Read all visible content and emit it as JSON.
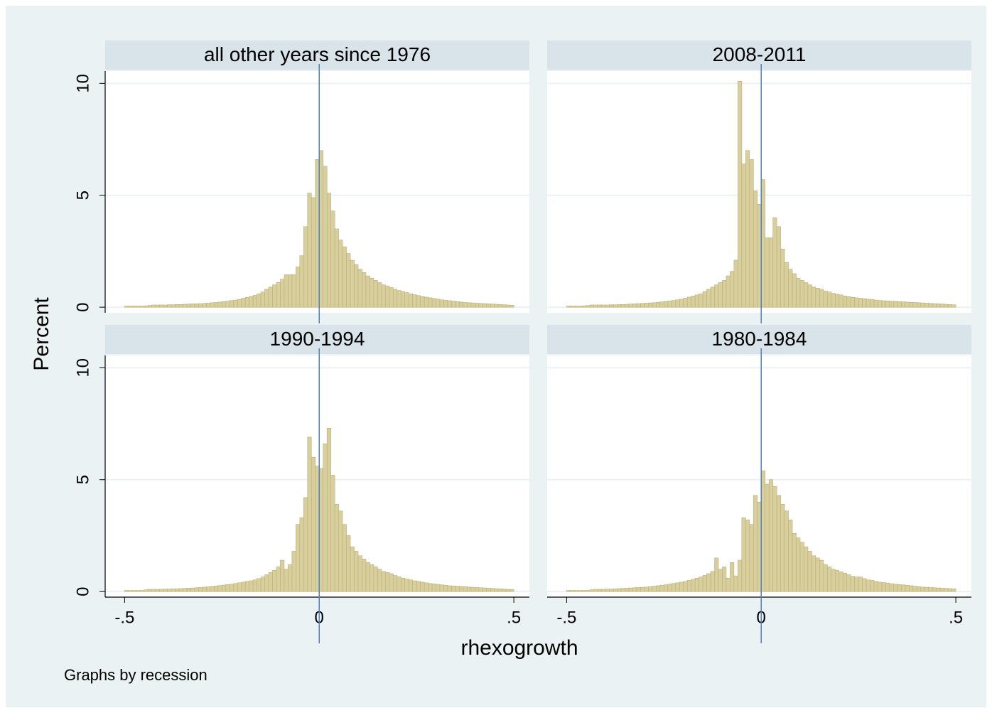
{
  "chart_data": [
    {
      "type": "histogram",
      "title": "all other years since 1976",
      "color": "#d8cf9c",
      "edge_color": "#b9ae7c",
      "xline": 0,
      "xline_color": "#4f81bd",
      "xlim": [
        -0.55,
        0.54
      ],
      "ylim": [
        -0.25,
        10.55
      ],
      "yticks": [
        0,
        5,
        10
      ],
      "grid": true,
      "bins": [
        -0.5,
        -0.49,
        -0.48,
        -0.47,
        -0.46,
        -0.45,
        -0.44,
        -0.43,
        -0.42,
        -0.41,
        -0.4,
        -0.39,
        -0.38,
        -0.37,
        -0.36,
        -0.35,
        -0.34,
        -0.33,
        -0.32,
        -0.31,
        -0.3,
        -0.29,
        -0.28,
        -0.27,
        -0.26,
        -0.25,
        -0.24,
        -0.23,
        -0.22,
        -0.21,
        -0.2,
        -0.19,
        -0.18,
        -0.17,
        -0.16,
        -0.15,
        -0.14,
        -0.13,
        -0.12,
        -0.11,
        -0.1,
        -0.09,
        -0.08,
        -0.07,
        -0.06,
        -0.05,
        -0.04,
        -0.03,
        -0.02,
        -0.01,
        0,
        0.01,
        0.02,
        0.03,
        0.04,
        0.05,
        0.06,
        0.07,
        0.08,
        0.09,
        0.1,
        0.11,
        0.12,
        0.13,
        0.14,
        0.15,
        0.16,
        0.17,
        0.18,
        0.19,
        0.2,
        0.21,
        0.22,
        0.23,
        0.24,
        0.25,
        0.26,
        0.27,
        0.28,
        0.29,
        0.3,
        0.31,
        0.32,
        0.33,
        0.34,
        0.35,
        0.36,
        0.37,
        0.38,
        0.39,
        0.4,
        0.41,
        0.42,
        0.43,
        0.44,
        0.45,
        0.46,
        0.47,
        0.48,
        0.49,
        0.5
      ],
      "values": [
        0.05,
        0.05,
        0.05,
        0.05,
        0.05,
        0.06,
        0.08,
        0.1,
        0.1,
        0.1,
        0.1,
        0.11,
        0.11,
        0.12,
        0.12,
        0.13,
        0.14,
        0.15,
        0.15,
        0.16,
        0.17,
        0.18,
        0.2,
        0.21,
        0.23,
        0.25,
        0.27,
        0.3,
        0.32,
        0.35,
        0.4,
        0.44,
        0.48,
        0.53,
        0.6,
        0.68,
        0.8,
        0.9,
        1.0,
        1.1,
        1.25,
        1.45,
        1.45,
        1.45,
        1.8,
        2.3,
        3.6,
        5.1,
        4.9,
        6.6,
        7.0,
        6.3,
        5.1,
        4.3,
        3.5,
        3.0,
        2.7,
        2.4,
        2.1,
        1.9,
        1.7,
        1.55,
        1.4,
        1.3,
        1.2,
        1.1,
        1.0,
        0.95,
        0.88,
        0.8,
        0.75,
        0.7,
        0.65,
        0.6,
        0.56,
        0.52,
        0.48,
        0.45,
        0.42,
        0.39,
        0.36,
        0.33,
        0.31,
        0.29,
        0.27,
        0.25,
        0.23,
        0.21,
        0.2,
        0.19,
        0.18,
        0.17,
        0.16,
        0.15,
        0.14,
        0.13,
        0.12,
        0.11,
        0.1,
        0.09
      ]
    },
    {
      "type": "histogram",
      "title": "2008-2011",
      "color": "#d8cf9c",
      "edge_color": "#b9ae7c",
      "xline": 0,
      "xline_color": "#4f81bd",
      "xlim": [
        -0.55,
        0.54
      ],
      "ylim": [
        -0.25,
        10.55
      ],
      "yticks": [
        0,
        5,
        10
      ],
      "grid": true,
      "bins": [
        -0.5,
        -0.49,
        -0.48,
        -0.47,
        -0.46,
        -0.45,
        -0.44,
        -0.43,
        -0.42,
        -0.41,
        -0.4,
        -0.39,
        -0.38,
        -0.37,
        -0.36,
        -0.35,
        -0.34,
        -0.33,
        -0.32,
        -0.31,
        -0.3,
        -0.29,
        -0.28,
        -0.27,
        -0.26,
        -0.25,
        -0.24,
        -0.23,
        -0.22,
        -0.21,
        -0.2,
        -0.19,
        -0.18,
        -0.17,
        -0.16,
        -0.15,
        -0.14,
        -0.13,
        -0.12,
        -0.11,
        -0.1,
        -0.09,
        -0.08,
        -0.07,
        -0.06,
        -0.05,
        -0.04,
        -0.03,
        -0.02,
        -0.01,
        0,
        0.01,
        0.02,
        0.03,
        0.04,
        0.05,
        0.06,
        0.07,
        0.08,
        0.09,
        0.1,
        0.11,
        0.12,
        0.13,
        0.14,
        0.15,
        0.16,
        0.17,
        0.18,
        0.19,
        0.2,
        0.21,
        0.22,
        0.23,
        0.24,
        0.25,
        0.26,
        0.27,
        0.28,
        0.29,
        0.3,
        0.31,
        0.32,
        0.33,
        0.34,
        0.35,
        0.36,
        0.37,
        0.38,
        0.39,
        0.4,
        0.41,
        0.42,
        0.43,
        0.44,
        0.45,
        0.46,
        0.47,
        0.48,
        0.49,
        0.5
      ],
      "values": [
        0.05,
        0.05,
        0.05,
        0.05,
        0.06,
        0.08,
        0.1,
        0.1,
        0.1,
        0.1,
        0.1,
        0.11,
        0.11,
        0.12,
        0.12,
        0.13,
        0.14,
        0.15,
        0.16,
        0.17,
        0.18,
        0.19,
        0.2,
        0.22,
        0.24,
        0.26,
        0.28,
        0.3,
        0.33,
        0.36,
        0.4,
        0.45,
        0.5,
        0.55,
        0.6,
        0.7,
        0.8,
        0.9,
        1.0,
        1.1,
        1.2,
        1.4,
        1.6,
        2.1,
        10.1,
        6.4,
        7.0,
        6.6,
        5.2,
        4.6,
        5.7,
        3.1,
        3.1,
        4.0,
        3.6,
        2.6,
        2.0,
        1.7,
        1.5,
        1.3,
        1.2,
        1.1,
        1.0,
        0.9,
        0.85,
        0.8,
        0.72,
        0.68,
        0.62,
        0.58,
        0.55,
        0.5,
        0.47,
        0.44,
        0.42,
        0.4,
        0.38,
        0.36,
        0.34,
        0.32,
        0.3,
        0.29,
        0.28,
        0.27,
        0.26,
        0.25,
        0.24,
        0.23,
        0.22,
        0.21,
        0.2,
        0.19,
        0.18,
        0.17,
        0.16,
        0.15,
        0.14,
        0.13,
        0.12,
        0.11
      ]
    },
    {
      "type": "histogram",
      "title": "1990-1994",
      "color": "#d8cf9c",
      "edge_color": "#b9ae7c",
      "xline": 0,
      "xline_color": "#4f81bd",
      "xlim": [
        -0.55,
        0.54
      ],
      "ylim": [
        -0.25,
        10.55
      ],
      "yticks": [
        0,
        5,
        10
      ],
      "grid": true,
      "xticks": [
        {
          "value": -0.5,
          "label": "-.5"
        },
        0,
        {
          "value": 0.5,
          "label": ".5"
        }
      ],
      "bins": [
        -0.5,
        -0.49,
        -0.48,
        -0.47,
        -0.46,
        -0.45,
        -0.44,
        -0.43,
        -0.42,
        -0.41,
        -0.4,
        -0.39,
        -0.38,
        -0.37,
        -0.36,
        -0.35,
        -0.34,
        -0.33,
        -0.32,
        -0.31,
        -0.3,
        -0.29,
        -0.28,
        -0.27,
        -0.26,
        -0.25,
        -0.24,
        -0.23,
        -0.22,
        -0.21,
        -0.2,
        -0.19,
        -0.18,
        -0.17,
        -0.16,
        -0.15,
        -0.14,
        -0.13,
        -0.12,
        -0.11,
        -0.1,
        -0.09,
        -0.08,
        -0.07,
        -0.06,
        -0.05,
        -0.04,
        -0.03,
        -0.02,
        -0.01,
        0,
        0.01,
        0.02,
        0.03,
        0.04,
        0.05,
        0.06,
        0.07,
        0.08,
        0.09,
        0.1,
        0.11,
        0.12,
        0.13,
        0.14,
        0.15,
        0.16,
        0.17,
        0.18,
        0.19,
        0.2,
        0.21,
        0.22,
        0.23,
        0.24,
        0.25,
        0.26,
        0.27,
        0.28,
        0.29,
        0.3,
        0.31,
        0.32,
        0.33,
        0.34,
        0.35,
        0.36,
        0.37,
        0.38,
        0.39,
        0.4,
        0.41,
        0.42,
        0.43,
        0.44,
        0.45,
        0.46,
        0.47,
        0.48,
        0.49,
        0.5
      ],
      "values": [
        0.05,
        0.05,
        0.05,
        0.05,
        0.05,
        0.08,
        0.1,
        0.1,
        0.1,
        0.1,
        0.11,
        0.11,
        0.12,
        0.12,
        0.13,
        0.14,
        0.15,
        0.16,
        0.17,
        0.18,
        0.2,
        0.21,
        0.23,
        0.25,
        0.27,
        0.29,
        0.31,
        0.33,
        0.36,
        0.39,
        0.42,
        0.45,
        0.48,
        0.52,
        0.58,
        0.65,
        0.75,
        0.85,
        0.95,
        1.1,
        1.4,
        1.0,
        1.2,
        1.8,
        3.0,
        3.3,
        4.2,
        6.9,
        6.0,
        5.6,
        5.5,
        6.6,
        7.3,
        5.2,
        3.9,
        3.6,
        3.0,
        2.5,
        2.0,
        1.8,
        1.6,
        1.45,
        1.3,
        1.2,
        1.1,
        1.0,
        0.9,
        0.85,
        0.8,
        0.72,
        0.66,
        0.6,
        0.56,
        0.52,
        0.48,
        0.45,
        0.42,
        0.39,
        0.36,
        0.34,
        0.32,
        0.3,
        0.28,
        0.26,
        0.25,
        0.24,
        0.23,
        0.22,
        0.2,
        0.19,
        0.18,
        0.17,
        0.16,
        0.15,
        0.14,
        0.13,
        0.12,
        0.11,
        0.1,
        0.09
      ]
    },
    {
      "type": "histogram",
      "title": "1980-1984",
      "color": "#d8cf9c",
      "edge_color": "#b9ae7c",
      "xline": 0,
      "xline_color": "#4f81bd",
      "xlim": [
        -0.55,
        0.54
      ],
      "ylim": [
        -0.25,
        10.55
      ],
      "yticks": [
        0,
        5,
        10
      ],
      "grid": true,
      "xticks": [
        {
          "value": -0.5,
          "label": "-.5"
        },
        0,
        {
          "value": 0.5,
          "label": ".5"
        }
      ],
      "bins": [
        -0.5,
        -0.49,
        -0.48,
        -0.47,
        -0.46,
        -0.45,
        -0.44,
        -0.43,
        -0.42,
        -0.41,
        -0.4,
        -0.39,
        -0.38,
        -0.37,
        -0.36,
        -0.35,
        -0.34,
        -0.33,
        -0.32,
        -0.31,
        -0.3,
        -0.29,
        -0.28,
        -0.27,
        -0.26,
        -0.25,
        -0.24,
        -0.23,
        -0.22,
        -0.21,
        -0.2,
        -0.19,
        -0.18,
        -0.17,
        -0.16,
        -0.15,
        -0.14,
        -0.13,
        -0.12,
        -0.11,
        -0.1,
        -0.09,
        -0.08,
        -0.07,
        -0.06,
        -0.05,
        -0.04,
        -0.03,
        -0.02,
        -0.01,
        0,
        0.01,
        0.02,
        0.03,
        0.04,
        0.05,
        0.06,
        0.07,
        0.08,
        0.09,
        0.1,
        0.11,
        0.12,
        0.13,
        0.14,
        0.15,
        0.16,
        0.17,
        0.18,
        0.19,
        0.2,
        0.21,
        0.22,
        0.23,
        0.24,
        0.25,
        0.26,
        0.27,
        0.28,
        0.29,
        0.3,
        0.31,
        0.32,
        0.33,
        0.34,
        0.35,
        0.36,
        0.37,
        0.38,
        0.39,
        0.4,
        0.41,
        0.42,
        0.43,
        0.44,
        0.45,
        0.46,
        0.47,
        0.48,
        0.49,
        0.5
      ],
      "values": [
        0.05,
        0.05,
        0.05,
        0.05,
        0.05,
        0.05,
        0.08,
        0.1,
        0.1,
        0.1,
        0.11,
        0.11,
        0.12,
        0.13,
        0.14,
        0.15,
        0.16,
        0.17,
        0.18,
        0.19,
        0.2,
        0.22,
        0.24,
        0.26,
        0.28,
        0.3,
        0.33,
        0.36,
        0.39,
        0.42,
        0.45,
        0.5,
        0.55,
        0.6,
        0.65,
        0.72,
        0.8,
        0.9,
        1.5,
        1.0,
        1.1,
        0.6,
        1.3,
        0.7,
        1.4,
        3.3,
        3.2,
        3.0,
        4.3,
        4.0,
        5.4,
        4.8,
        5.0,
        4.7,
        4.3,
        3.9,
        3.6,
        3.2,
        2.6,
        2.4,
        2.2,
        2.0,
        1.8,
        1.6,
        1.5,
        1.4,
        1.2,
        1.1,
        1.0,
        0.95,
        0.88,
        0.82,
        0.75,
        0.68,
        0.65,
        0.65,
        0.58,
        0.52,
        0.5,
        0.45,
        0.42,
        0.4,
        0.38,
        0.35,
        0.33,
        0.31,
        0.3,
        0.28,
        0.26,
        0.24,
        0.22,
        0.2,
        0.19,
        0.18,
        0.17,
        0.16,
        0.15,
        0.14,
        0.13,
        0.12
      ]
    }
  ],
  "ylabel": "Percent",
  "xlabel": "rhexogrowth",
  "note": "Graphs by recession"
}
